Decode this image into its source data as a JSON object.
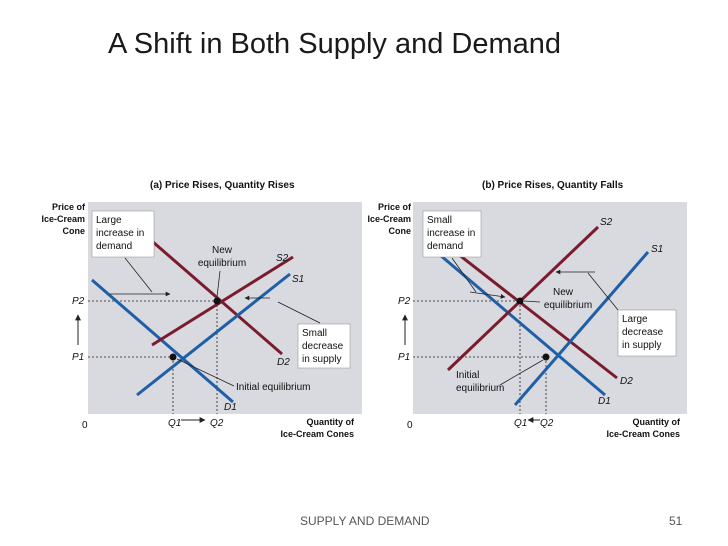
{
  "slide": {
    "title": "A Shift in Both Supply and Demand",
    "footer": "SUPPLY AND DEMAND",
    "page_number": "51"
  },
  "colors": {
    "plot_bg": "#d8dadf",
    "demand": "#1f5fa8",
    "supply": "#7a1c2e",
    "guide": "#222222",
    "annotation_box": "#ffffff"
  },
  "panel_a": {
    "heading": "(a) Price Rises, Quantity Rises",
    "y_axis_label": [
      "Price of",
      "Ice-Cream",
      "Cone"
    ],
    "x_axis_label": [
      "Quantity of",
      "Ice-Cream Cones"
    ],
    "origin": "0",
    "p2": "P2",
    "p1": "P1",
    "q1": "Q1",
    "q2": "Q2",
    "s1": "S1",
    "s2": "S2",
    "d1": "D1",
    "d2": "D2",
    "note_demand": [
      "Large",
      "increase in",
      "demand"
    ],
    "note_new_eq": [
      "New",
      "equilibrium"
    ],
    "note_supply": [
      "Small",
      "decrease",
      "in supply"
    ],
    "note_initial_eq": "Initial equilibrium"
  },
  "panel_b": {
    "heading": "(b) Price Rises, Quantity Falls",
    "y_axis_label": [
      "Price of",
      "Ice-Cream",
      "Cone"
    ],
    "x_axis_label": [
      "Quantity of",
      "Ice-Cream Cones"
    ],
    "origin": "0",
    "p2": "P2",
    "p1": "P1",
    "q1": "Q1",
    "q2": "Q2",
    "s1": "S1",
    "s2": "S2",
    "d1": "D1",
    "d2": "D2",
    "note_demand": [
      "Small",
      "increase in",
      "demand"
    ],
    "note_new_eq": [
      "New",
      "equilibrium"
    ],
    "note_supply": [
      "Large",
      "decrease",
      "in supply"
    ],
    "note_initial_eq": [
      "Initial",
      "equilibrium"
    ]
  }
}
